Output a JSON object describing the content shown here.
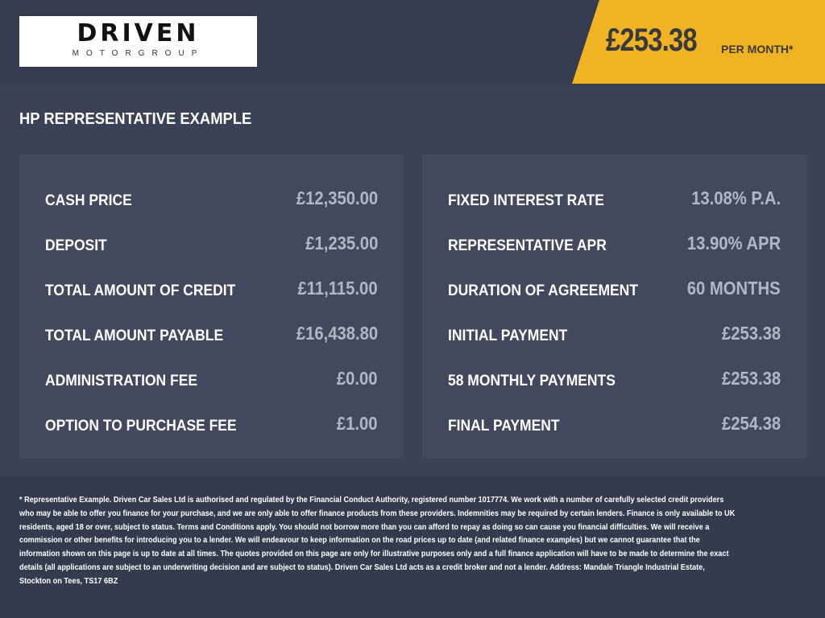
{
  "header": {
    "logo_text": "DRIVEN",
    "logo_sub": "MOTORGROUP",
    "monthly_price": "£253.38",
    "per_month_label": "PER MONTH*",
    "accent_color": "#f0b323"
  },
  "section_title": "HP REPRESENTATIVE EXAMPLE",
  "left_panel": [
    {
      "label": "CASH PRICE",
      "value": "£12,350.00"
    },
    {
      "label": "DEPOSIT",
      "value": "£1,235.00"
    },
    {
      "label": "TOTAL AMOUNT OF CREDIT",
      "value": "£11,115.00"
    },
    {
      "label": "TOTAL AMOUNT PAYABLE",
      "value": "£16,438.80"
    },
    {
      "label": "ADMINISTRATION FEE",
      "value": "£0.00"
    },
    {
      "label": "OPTION TO PURCHASE FEE",
      "value": "£1.00"
    }
  ],
  "right_panel": [
    {
      "label": "FIXED INTEREST RATE",
      "value": "13.08% P.A."
    },
    {
      "label": "REPRESENTATIVE APR",
      "value": "13.90% APR"
    },
    {
      "label": "DURATION OF AGREEMENT",
      "value": "60 MONTHS"
    },
    {
      "label": "INITIAL PAYMENT",
      "value": "£253.38"
    },
    {
      "label": "58 MONTHLY PAYMENTS",
      "value": "£253.38"
    },
    {
      "label": "FINAL PAYMENT",
      "value": "£254.38"
    }
  ],
  "disclaimer": "* Representative Example. Driven Car Sales Ltd is authorised and regulated by the Financial Conduct Authority, registered number 1017774. We work with a number of carefully selected credit providers who may be able to offer you finance for your purchase, and we are only able to offer finance products from these providers. Indemnities may be required by certain lenders. Finance is only available to UK residents, aged 18 or over, subject to status. Terms and Conditions apply. You should not borrow more than you can afford to repay as doing so can cause you financial difficulties. We will receive a commission or other benefits for introducing you to a lender. We will endeavour to keep information on the road prices up to date (and related finance examples) but we cannot guarantee that the information shown on this page is up to date at all times. The quotes provided on this page are only for illustrative purposes only and a full finance application will have to be made to determine the exact details (all applications are subject to an underwriting decision and are subject to status). Driven Car Sales Ltd acts as a credit broker and not a lender. Address: Mandale Triangle Industrial Estate, Stockton on Tees, TS17 6BZ"
}
